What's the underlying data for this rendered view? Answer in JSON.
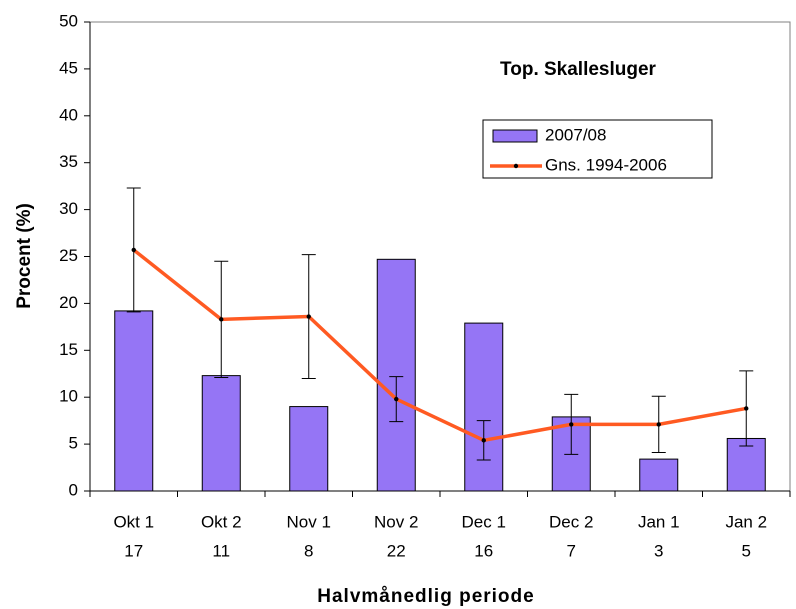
{
  "chart_data": {
    "type": "bar_line",
    "title": "Top. Skallesluger",
    "xlabel": "Halvmånedlig periode",
    "ylabel": "Procent (%)",
    "categories": [
      "Okt 1",
      "Okt 2",
      "Nov 1",
      "Nov 2",
      "Dec 1",
      "Dec 2",
      "Jan 1",
      "Jan 2"
    ],
    "category_counts": [
      17,
      11,
      8,
      22,
      16,
      7,
      3,
      5
    ],
    "series": [
      {
        "name": "2007/08",
        "type": "bar",
        "color": "#9575f5",
        "values": [
          19.2,
          12.3,
          9.0,
          24.7,
          17.9,
          7.9,
          3.4,
          5.6
        ]
      },
      {
        "name": "Gns. 1994-2006",
        "type": "line",
        "color": "#ff5a22",
        "values": [
          25.7,
          18.3,
          18.6,
          9.8,
          5.4,
          7.1,
          7.1,
          8.8
        ],
        "errors": [
          6.6,
          6.2,
          6.6,
          2.4,
          2.1,
          3.2,
          3.0,
          4.0
        ]
      }
    ],
    "ylim": [
      0,
      50
    ],
    "yticks": [
      0,
      5,
      10,
      15,
      20,
      25,
      30,
      35,
      40,
      45,
      50
    ]
  }
}
